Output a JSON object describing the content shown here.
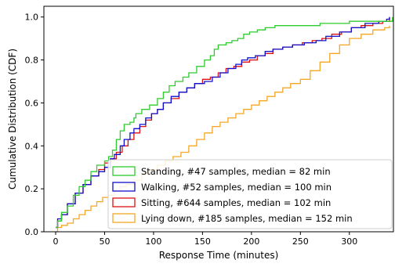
{
  "chart_data": {
    "type": "line",
    "subtype": "ecdf-step",
    "xlabel": "Response Time (minutes)",
    "ylabel": "Cumulative Distribution (CDF)",
    "xlim": [
      -12,
      345
    ],
    "ylim": [
      0,
      1.05
    ],
    "xticks": [
      0,
      50,
      100,
      150,
      200,
      250,
      300
    ],
    "yticks": [
      0.0,
      0.2,
      0.4,
      0.6,
      0.8,
      1.0
    ],
    "grid": false,
    "legend_position": "lower-right",
    "series": [
      {
        "name": "Standing, #47 samples, median = 82 min",
        "color": "#2ecc2e",
        "points": [
          [
            0,
            0.02
          ],
          [
            2,
            0.05
          ],
          [
            6,
            0.09
          ],
          [
            12,
            0.12
          ],
          [
            18,
            0.17
          ],
          [
            24,
            0.21
          ],
          [
            30,
            0.24
          ],
          [
            36,
            0.28
          ],
          [
            42,
            0.31
          ],
          [
            50,
            0.33
          ],
          [
            54,
            0.35
          ],
          [
            58,
            0.38
          ],
          [
            62,
            0.43
          ],
          [
            66,
            0.47
          ],
          [
            70,
            0.5
          ],
          [
            76,
            0.51
          ],
          [
            80,
            0.53
          ],
          [
            82,
            0.55
          ],
          [
            88,
            0.57
          ],
          [
            96,
            0.59
          ],
          [
            104,
            0.62
          ],
          [
            110,
            0.65
          ],
          [
            116,
            0.68
          ],
          [
            122,
            0.7
          ],
          [
            130,
            0.72
          ],
          [
            136,
            0.74
          ],
          [
            144,
            0.77
          ],
          [
            152,
            0.8
          ],
          [
            158,
            0.82
          ],
          [
            162,
            0.85
          ],
          [
            166,
            0.87
          ],
          [
            174,
            0.88
          ],
          [
            180,
            0.89
          ],
          [
            186,
            0.9
          ],
          [
            192,
            0.92
          ],
          [
            198,
            0.93
          ],
          [
            206,
            0.94
          ],
          [
            214,
            0.95
          ],
          [
            224,
            0.96
          ],
          [
            240,
            0.96
          ],
          [
            270,
            0.97
          ],
          [
            300,
            0.98
          ],
          [
            344,
            1.0
          ]
        ]
      },
      {
        "name": "Walking, #52 samples, median = 100 min",
        "color": "#1010cc",
        "points": [
          [
            0,
            0.02
          ],
          [
            2,
            0.06
          ],
          [
            6,
            0.08
          ],
          [
            12,
            0.13
          ],
          [
            20,
            0.18
          ],
          [
            28,
            0.22
          ],
          [
            36,
            0.26
          ],
          [
            44,
            0.28
          ],
          [
            50,
            0.3
          ],
          [
            56,
            0.34
          ],
          [
            60,
            0.36
          ],
          [
            66,
            0.4
          ],
          [
            70,
            0.43
          ],
          [
            76,
            0.46
          ],
          [
            80,
            0.48
          ],
          [
            86,
            0.5
          ],
          [
            92,
            0.53
          ],
          [
            98,
            0.55
          ],
          [
            104,
            0.57
          ],
          [
            110,
            0.6
          ],
          [
            118,
            0.63
          ],
          [
            126,
            0.65
          ],
          [
            134,
            0.67
          ],
          [
            142,
            0.69
          ],
          [
            152,
            0.7
          ],
          [
            160,
            0.72
          ],
          [
            168,
            0.74
          ],
          [
            176,
            0.76
          ],
          [
            184,
            0.78
          ],
          [
            190,
            0.8
          ],
          [
            196,
            0.81
          ],
          [
            204,
            0.82
          ],
          [
            214,
            0.84
          ],
          [
            222,
            0.85
          ],
          [
            232,
            0.86
          ],
          [
            242,
            0.87
          ],
          [
            254,
            0.88
          ],
          [
            266,
            0.89
          ],
          [
            276,
            0.91
          ],
          [
            290,
            0.93
          ],
          [
            302,
            0.95
          ],
          [
            316,
            0.97
          ],
          [
            330,
            0.98
          ],
          [
            338,
            0.99
          ],
          [
            341,
            1.0
          ]
        ]
      },
      {
        "name": "Sitting, #644 samples, median = 102 min",
        "color": "#dd1111",
        "points": [
          [
            0,
            0.02
          ],
          [
            2,
            0.05
          ],
          [
            6,
            0.08
          ],
          [
            12,
            0.13
          ],
          [
            20,
            0.18
          ],
          [
            28,
            0.22
          ],
          [
            36,
            0.26
          ],
          [
            44,
            0.29
          ],
          [
            50,
            0.32
          ],
          [
            56,
            0.34
          ],
          [
            62,
            0.37
          ],
          [
            68,
            0.4
          ],
          [
            74,
            0.43
          ],
          [
            80,
            0.46
          ],
          [
            86,
            0.49
          ],
          [
            92,
            0.52
          ],
          [
            98,
            0.55
          ],
          [
            104,
            0.57
          ],
          [
            110,
            0.6
          ],
          [
            118,
            0.62
          ],
          [
            126,
            0.65
          ],
          [
            134,
            0.67
          ],
          [
            142,
            0.69
          ],
          [
            150,
            0.71
          ],
          [
            158,
            0.72
          ],
          [
            166,
            0.74
          ],
          [
            174,
            0.76
          ],
          [
            182,
            0.77
          ],
          [
            190,
            0.79
          ],
          [
            198,
            0.8
          ],
          [
            206,
            0.82
          ],
          [
            214,
            0.83
          ],
          [
            222,
            0.85
          ],
          [
            232,
            0.86
          ],
          [
            242,
            0.87
          ],
          [
            252,
            0.88
          ],
          [
            262,
            0.89
          ],
          [
            272,
            0.9
          ],
          [
            282,
            0.92
          ],
          [
            292,
            0.93
          ],
          [
            302,
            0.95
          ],
          [
            312,
            0.96
          ],
          [
            324,
            0.97
          ],
          [
            334,
            0.98
          ],
          [
            341,
            1.0
          ]
        ]
      },
      {
        "name": "Lying down, #185 samples, median = 152 min",
        "color": "#f5a623",
        "points": [
          [
            0,
            0.0
          ],
          [
            2,
            0.02
          ],
          [
            6,
            0.03
          ],
          [
            12,
            0.04
          ],
          [
            18,
            0.06
          ],
          [
            24,
            0.08
          ],
          [
            30,
            0.1
          ],
          [
            36,
            0.12
          ],
          [
            42,
            0.14
          ],
          [
            48,
            0.16
          ],
          [
            54,
            0.17
          ],
          [
            60,
            0.19
          ],
          [
            66,
            0.21
          ],
          [
            72,
            0.22
          ],
          [
            80,
            0.24
          ],
          [
            88,
            0.27
          ],
          [
            96,
            0.29
          ],
          [
            104,
            0.31
          ],
          [
            112,
            0.33
          ],
          [
            120,
            0.35
          ],
          [
            128,
            0.37
          ],
          [
            136,
            0.4
          ],
          [
            144,
            0.43
          ],
          [
            152,
            0.46
          ],
          [
            160,
            0.49
          ],
          [
            168,
            0.51
          ],
          [
            176,
            0.53
          ],
          [
            184,
            0.55
          ],
          [
            192,
            0.57
          ],
          [
            200,
            0.59
          ],
          [
            208,
            0.61
          ],
          [
            216,
            0.63
          ],
          [
            224,
            0.65
          ],
          [
            232,
            0.67
          ],
          [
            240,
            0.69
          ],
          [
            250,
            0.71
          ],
          [
            260,
            0.75
          ],
          [
            270,
            0.79
          ],
          [
            280,
            0.83
          ],
          [
            290,
            0.87
          ],
          [
            300,
            0.9
          ],
          [
            312,
            0.92
          ],
          [
            324,
            0.94
          ],
          [
            336,
            0.95
          ],
          [
            341,
            0.96
          ]
        ]
      }
    ]
  }
}
